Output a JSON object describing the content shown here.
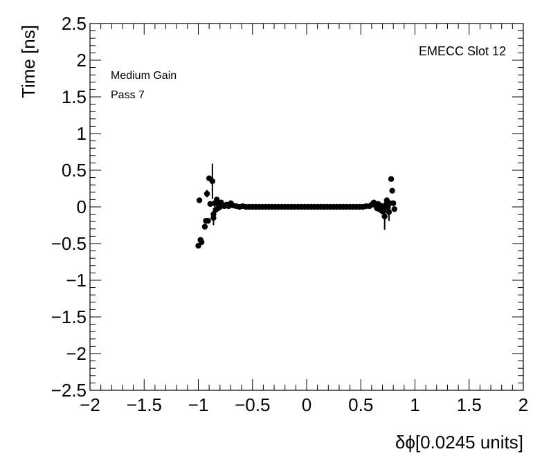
{
  "chart_data": {
    "type": "scatter",
    "title": "",
    "xlabel": "δϕ[0.0245 units]",
    "ylabel": "Time [ns]",
    "xlim": [
      -2,
      2
    ],
    "ylim": [
      -2.5,
      2.5
    ],
    "xticks": [
      "−2",
      "−1.5",
      "−1",
      "−0.5",
      "0",
      "0.5",
      "1",
      "1.5",
      "2"
    ],
    "yticks": [
      "2.5",
      "2",
      "1.5",
      "1",
      "0.5",
      "0",
      "−0.5",
      "−1",
      "−1.5",
      "−2",
      "−2.5"
    ],
    "annotations": {
      "slot": "EMECC Slot 12",
      "gain": "Medium Gain",
      "pass": "Pass 7"
    },
    "grid": false,
    "series": [
      {
        "marker": "circle",
        "color": "#000000",
        "points": [
          {
            "x": -1.0,
            "y": -0.53,
            "err": 0.02
          },
          {
            "x": -0.98,
            "y": -0.45,
            "err": 0.02
          },
          {
            "x": -0.97,
            "y": -0.48,
            "err": 0.02
          },
          {
            "x": -0.99,
            "y": 0.09,
            "err": 0.02
          },
          {
            "x": -0.94,
            "y": -0.27,
            "err": 0.02
          },
          {
            "x": -0.93,
            "y": -0.19,
            "err": 0.02
          },
          {
            "x": -0.92,
            "y": 0.18,
            "err": 0.05
          },
          {
            "x": -0.91,
            "y": -0.19,
            "err": 0.02
          },
          {
            "x": -0.9,
            "y": 0.39,
            "err": 0.02
          },
          {
            "x": -0.89,
            "y": 0.04,
            "err": 0.02
          },
          {
            "x": -0.87,
            "y": 0.35,
            "err": 0.24
          },
          {
            "x": -0.86,
            "y": -0.1,
            "err": 0.02
          },
          {
            "x": -0.86,
            "y": -0.15,
            "err": 0.1
          },
          {
            "x": -0.85,
            "y": 0.05,
            "err": 0.05
          },
          {
            "x": -0.84,
            "y": -0.04,
            "err": 0.02
          },
          {
            "x": -0.83,
            "y": 0.1,
            "err": 0.02
          },
          {
            "x": -0.82,
            "y": -0.02,
            "err": 0.02
          },
          {
            "x": -0.81,
            "y": 0.03,
            "err": 0.02
          },
          {
            "x": -0.8,
            "y": 0.0,
            "err": 0.02
          },
          {
            "x": -0.79,
            "y": 0.06,
            "err": 0.02
          },
          {
            "x": -0.78,
            "y": 0.02,
            "err": 0.02
          },
          {
            "x": -0.76,
            "y": 0.01,
            "err": 0.01
          },
          {
            "x": -0.74,
            "y": 0.03,
            "err": 0.01
          },
          {
            "x": -0.72,
            "y": 0.01,
            "err": 0.01
          },
          {
            "x": -0.7,
            "y": 0.05,
            "err": 0.01
          },
          {
            "x": -0.68,
            "y": 0.02,
            "err": 0.01
          },
          {
            "x": -0.65,
            "y": 0.01,
            "err": 0.01
          },
          {
            "x": -0.62,
            "y": 0.0,
            "err": 0.01
          },
          {
            "x": -0.59,
            "y": 0.01,
            "err": 0.01
          },
          {
            "x": -0.56,
            "y": 0.0,
            "err": 0.01
          },
          {
            "x": -0.53,
            "y": 0.0,
            "err": 0.01
          },
          {
            "x": -0.5,
            "y": 0.0,
            "err": 0.01
          },
          {
            "x": -0.47,
            "y": 0.0,
            "err": 0.01
          },
          {
            "x": -0.44,
            "y": 0.0,
            "err": 0.01
          },
          {
            "x": -0.41,
            "y": 0.0,
            "err": 0.01
          },
          {
            "x": -0.38,
            "y": 0.0,
            "err": 0.01
          },
          {
            "x": -0.35,
            "y": 0.0,
            "err": 0.01
          },
          {
            "x": -0.32,
            "y": 0.0,
            "err": 0.01
          },
          {
            "x": -0.29,
            "y": 0.0,
            "err": 0.01
          },
          {
            "x": -0.26,
            "y": 0.0,
            "err": 0.01
          },
          {
            "x": -0.23,
            "y": 0.0,
            "err": 0.01
          },
          {
            "x": -0.2,
            "y": 0.0,
            "err": 0.01
          },
          {
            "x": -0.17,
            "y": 0.0,
            "err": 0.01
          },
          {
            "x": -0.14,
            "y": 0.0,
            "err": 0.01
          },
          {
            "x": -0.11,
            "y": 0.0,
            "err": 0.01
          },
          {
            "x": -0.08,
            "y": 0.0,
            "err": 0.01
          },
          {
            "x": -0.05,
            "y": 0.0,
            "err": 0.01
          },
          {
            "x": -0.02,
            "y": 0.0,
            "err": 0.01
          },
          {
            "x": 0.01,
            "y": 0.0,
            "err": 0.01
          },
          {
            "x": 0.04,
            "y": 0.0,
            "err": 0.01
          },
          {
            "x": 0.07,
            "y": 0.0,
            "err": 0.01
          },
          {
            "x": 0.1,
            "y": 0.0,
            "err": 0.01
          },
          {
            "x": 0.13,
            "y": 0.0,
            "err": 0.01
          },
          {
            "x": 0.16,
            "y": 0.0,
            "err": 0.01
          },
          {
            "x": 0.19,
            "y": 0.0,
            "err": 0.01
          },
          {
            "x": 0.22,
            "y": 0.0,
            "err": 0.01
          },
          {
            "x": 0.25,
            "y": 0.0,
            "err": 0.01
          },
          {
            "x": 0.28,
            "y": 0.0,
            "err": 0.01
          },
          {
            "x": 0.31,
            "y": 0.0,
            "err": 0.01
          },
          {
            "x": 0.34,
            "y": 0.0,
            "err": 0.01
          },
          {
            "x": 0.37,
            "y": 0.0,
            "err": 0.01
          },
          {
            "x": 0.4,
            "y": 0.0,
            "err": 0.01
          },
          {
            "x": 0.43,
            "y": 0.0,
            "err": 0.01
          },
          {
            "x": 0.46,
            "y": 0.0,
            "err": 0.01
          },
          {
            "x": 0.49,
            "y": 0.0,
            "err": 0.01
          },
          {
            "x": 0.52,
            "y": 0.0,
            "err": 0.01
          },
          {
            "x": 0.55,
            "y": 0.01,
            "err": 0.01
          },
          {
            "x": 0.58,
            "y": 0.01,
            "err": 0.01
          },
          {
            "x": 0.6,
            "y": 0.03,
            "err": 0.02
          },
          {
            "x": 0.62,
            "y": 0.06,
            "err": 0.02
          },
          {
            "x": 0.64,
            "y": 0.01,
            "err": 0.02
          },
          {
            "x": 0.65,
            "y": -0.02,
            "err": 0.02
          },
          {
            "x": 0.66,
            "y": 0.04,
            "err": 0.02
          },
          {
            "x": 0.67,
            "y": -0.03,
            "err": 0.02
          },
          {
            "x": 0.68,
            "y": 0.02,
            "err": 0.02
          },
          {
            "x": 0.69,
            "y": -0.05,
            "err": 0.05
          },
          {
            "x": 0.7,
            "y": 0.0,
            "err": 0.02
          },
          {
            "x": 0.71,
            "y": -0.06,
            "err": 0.06
          },
          {
            "x": 0.72,
            "y": -0.13,
            "err": 0.18
          },
          {
            "x": 0.73,
            "y": 0.03,
            "err": 0.02
          },
          {
            "x": 0.74,
            "y": 0.09,
            "err": 0.02
          },
          {
            "x": 0.75,
            "y": -0.01,
            "err": 0.02
          },
          {
            "x": 0.76,
            "y": -0.07,
            "err": 0.12
          },
          {
            "x": 0.77,
            "y": 0.05,
            "err": 0.02
          },
          {
            "x": 0.78,
            "y": 0.38,
            "err": 0.02
          },
          {
            "x": 0.79,
            "y": 0.22,
            "err": 0.02
          },
          {
            "x": 0.8,
            "y": 0.05,
            "err": 0.02
          },
          {
            "x": 0.81,
            "y": -0.03,
            "err": 0.02
          }
        ]
      }
    ]
  }
}
